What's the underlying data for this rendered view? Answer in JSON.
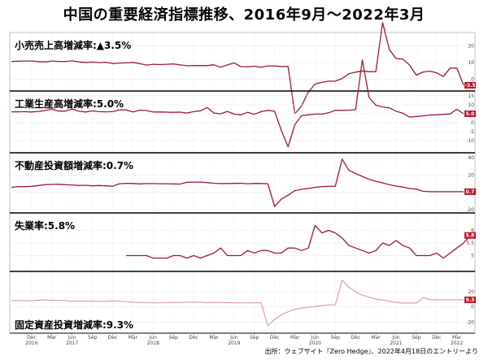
{
  "page": {
    "title": "中国の重要経済指標推移、2016年9月～2022年3月",
    "credit": "出所：ウェブサイト『Zero Hedge』、2022年4月18日のエントリーより"
  },
  "chart_data": {
    "type": "line",
    "x_ticks": [
      {
        "i": 3,
        "label": "Dec"
      },
      {
        "i": 6,
        "label": "Mar"
      },
      {
        "i": 9,
        "label": "Jun"
      },
      {
        "i": 12,
        "label": "Sep"
      },
      {
        "i": 15,
        "label": "Dec"
      },
      {
        "i": 18,
        "label": "Mar"
      },
      {
        "i": 21,
        "label": "Jun"
      },
      {
        "i": 24,
        "label": "Sep"
      },
      {
        "i": 27,
        "label": "Dec"
      },
      {
        "i": 30,
        "label": "Mar"
      },
      {
        "i": 33,
        "label": "Jun"
      },
      {
        "i": 36,
        "label": "Sep"
      },
      {
        "i": 39,
        "label": "Dec"
      },
      {
        "i": 42,
        "label": "Mar"
      },
      {
        "i": 45,
        "label": "Jun"
      },
      {
        "i": 48,
        "label": "Sep"
      },
      {
        "i": 51,
        "label": "Dec"
      },
      {
        "i": 54,
        "label": "Mar"
      },
      {
        "i": 57,
        "label": "Jun"
      },
      {
        "i": 60,
        "label": "Sep"
      },
      {
        "i": 63,
        "label": "Dec"
      },
      {
        "i": 66,
        "label": "Mar"
      }
    ],
    "year_labels": [
      {
        "i": 3,
        "label": "2016"
      },
      {
        "i": 9,
        "label": "2017"
      },
      {
        "i": 21,
        "label": "2018"
      },
      {
        "i": 33,
        "label": "2019"
      },
      {
        "i": 45,
        "label": "2020"
      },
      {
        "i": 57,
        "label": "2021"
      },
      {
        "i": 66,
        "label": "2022"
      }
    ],
    "panels": [
      {
        "label": "小売売上高増減率:▲3.5%",
        "ylim": [
          -5,
          25
        ],
        "yticks": [
          0,
          10,
          20
        ],
        "last_value_label": "-3.5",
        "values": [
          10.7,
          10.8,
          10.9,
          10.9,
          10.6,
          10.4,
          10.9,
          10.7,
          10.7,
          11.0,
          10.4,
          10.1,
          10.3,
          10.0,
          10.2,
          9.4,
          9.7,
          9.8,
          10.1,
          9.4,
          8.5,
          9.0,
          8.8,
          9.0,
          9.2,
          8.6,
          8.1,
          8.2,
          8.2,
          8.2,
          8.7,
          7.2,
          8.6,
          9.8,
          7.6,
          7.5,
          7.8,
          7.2,
          8.0,
          8.0,
          7.7,
          7.7,
          -20.5,
          -15.8,
          -7.5,
          -2.8,
          -1.8,
          -1.1,
          -1.1,
          0.5,
          3.3,
          4.3,
          5.0,
          4.6,
          4.6,
          33.8,
          17.7,
          12.4,
          12.1,
          8.5,
          2.5,
          4.4,
          4.9,
          3.9,
          1.7,
          6.7,
          6.7,
          -3.5
        ]
      },
      {
        "label": "工業生産高増減率:5.0%",
        "ylim": [
          -15,
          15
        ],
        "yticks": [
          -10,
          -5,
          0,
          5,
          10,
          15
        ],
        "last_value_label": "5.0",
        "values": [
          6.1,
          6.1,
          6.2,
          6.0,
          6.3,
          6.8,
          7.6,
          6.5,
          6.5,
          7.6,
          6.4,
          6.0,
          6.6,
          6.2,
          6.1,
          6.2,
          7.2,
          7.2,
          6.0,
          7.0,
          6.8,
          6.0,
          6.0,
          5.9,
          5.8,
          5.9,
          5.4,
          6.2,
          6.7,
          8.5,
          5.4,
          5.0,
          6.3,
          4.8,
          4.4,
          5.8,
          4.7,
          6.2,
          6.9,
          6.4,
          -4.3,
          -13.5,
          -1.1,
          3.9,
          4.4,
          4.8,
          4.8,
          5.6,
          6.9,
          6.9,
          7.0,
          7.3,
          35.1,
          14.1,
          9.8,
          8.8,
          8.3,
          6.4,
          5.3,
          3.1,
          3.5,
          3.8,
          4.3,
          4.4,
          4.7,
          4.9,
          7.5,
          5.0
        ]
      },
      {
        "label": "不動産投資額増減率:0.7%",
        "ylim": [
          -20,
          40
        ],
        "yticks": [
          -20,
          0,
          20,
          40
        ],
        "last_value_label": "0.7",
        "values": [
          5.8,
          6.6,
          6.5,
          6.9,
          7.8,
          8.9,
          9.1,
          9.3,
          8.8,
          8.5,
          7.9,
          8.1,
          7.5,
          7.8,
          7.5,
          7.0,
          9.9,
          10.4,
          10.2,
          9.7,
          10.1,
          10.1,
          9.9,
          9.9,
          9.7,
          9.5,
          11.6,
          11.8,
          11.9,
          11.2,
          10.5,
          10.1,
          10.2,
          10.3,
          10.5,
          9.9,
          10.3,
          10.2,
          9.9,
          -16.3,
          -7.7,
          -3.3,
          1.9,
          3.4,
          4.6,
          5.8,
          6.5,
          6.8,
          7.0,
          38.3,
          25.6,
          21.6,
          18.3,
          15.0,
          12.7,
          10.9,
          8.8,
          7.2,
          6.1,
          4.4,
          3.7,
          1.2,
          0.7,
          0.7,
          0.7,
          0.7,
          0.7,
          0.7
        ]
      },
      {
        "label": "失業率:5.8%",
        "ylim": [
          4.5,
          6.5
        ],
        "yticks": [
          5.0,
          5.5,
          6.0
        ],
        "last_value_label": "5.8",
        "start_index": 17,
        "values": [
          5.0,
          5.0,
          5.0,
          5.0,
          4.9,
          4.9,
          4.9,
          5.0,
          5.0,
          4.9,
          5.0,
          4.9,
          5.0,
          5.1,
          5.3,
          5.0,
          5.0,
          5.0,
          5.2,
          5.1,
          5.2,
          5.2,
          5.1,
          5.1,
          5.3,
          5.3,
          5.2,
          5.3,
          6.2,
          5.9,
          6.0,
          5.9,
          5.7,
          5.4,
          5.3,
          5.2,
          5.1,
          5.2,
          5.5,
          5.4,
          5.6,
          5.4,
          5.3,
          5.0,
          5.0,
          5.0,
          5.1,
          4.9,
          5.1,
          5.3,
          5.5,
          5.8
        ]
      },
      {
        "label": "固定資産投資増減率:9.3%",
        "ylim": [
          -30,
          40
        ],
        "yticks": [
          -20,
          0,
          20
        ],
        "last_value_label": "9.3",
        "values": [
          8.2,
          8.3,
          8.3,
          8.1,
          8.9,
          9.2,
          8.6,
          8.6,
          8.3,
          7.3,
          7.8,
          7.5,
          7.5,
          7.2,
          7.2,
          7.9,
          7.5,
          7.0,
          6.1,
          6.0,
          5.5,
          5.3,
          5.4,
          5.7,
          5.9,
          5.9,
          6.1,
          6.3,
          6.1,
          5.6,
          5.8,
          5.7,
          5.5,
          5.4,
          5.2,
          5.2,
          5.2,
          5.4,
          -24.5,
          -16.1,
          -10.3,
          -6.3,
          -3.1,
          -1.6,
          -0.3,
          0.8,
          1.8,
          2.6,
          2.9,
          35.0,
          25.6,
          19.9,
          15.4,
          12.6,
          10.3,
          8.9,
          7.3,
          6.1,
          4.9,
          5.2,
          4.9,
          12.2,
          9.3,
          9.3,
          9.3,
          9.3,
          9.3,
          9.3
        ]
      }
    ]
  }
}
